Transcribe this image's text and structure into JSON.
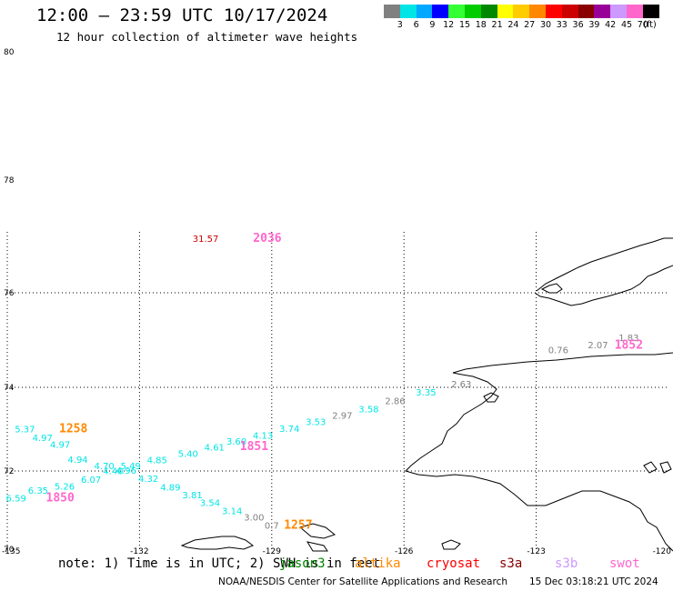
{
  "title": "12:00 – 23:59 UTC 10/17/2024",
  "subtitle": "12 hour collection of altimeter wave heights",
  "legend": {
    "unit": "(ft)",
    "bins": [
      {
        "label": "3",
        "color": "#808080"
      },
      {
        "label": "6",
        "color": "#00e5e5"
      },
      {
        "label": "9",
        "color": "#00a8ff"
      },
      {
        "label": "12",
        "color": "#0000ff"
      },
      {
        "label": "15",
        "color": "#33ff33"
      },
      {
        "label": "18",
        "color": "#00cc00"
      },
      {
        "label": "21",
        "color": "#008800"
      },
      {
        "label": "24",
        "color": "#ffff00"
      },
      {
        "label": "27",
        "color": "#ffcc00"
      },
      {
        "label": "30",
        "color": "#ff8800"
      },
      {
        "label": "33",
        "color": "#ff0000"
      },
      {
        "label": "36",
        "color": "#cc0000"
      },
      {
        "label": "39",
        "color": "#880000"
      },
      {
        "label": "42",
        "color": "#990099"
      },
      {
        "label": "45",
        "color": "#cc99ff"
      },
      {
        "label": "70",
        "color": "#ff66cc"
      },
      {
        "label": "",
        "color": "#000000"
      }
    ]
  },
  "map": {
    "lat_labels": [
      {
        "text": "80",
        "y": 80
      },
      {
        "text": "78",
        "y": 78
      },
      {
        "text": "76",
        "y": 76
      },
      {
        "text": "74",
        "y": 74
      },
      {
        "text": "72",
        "y": 72
      },
      {
        "text": "70",
        "y": 70
      }
    ],
    "lon_labels": [
      "-135",
      "-132",
      "-129",
      "-126",
      "-123",
      "-120"
    ],
    "observations": [
      {
        "text": "31.57",
        "lon": -130.5,
        "lat": 76.9,
        "color": "#cc0000"
      },
      {
        "text": "2036",
        "lon": -129.1,
        "lat": 76.9,
        "color": "#ff66cc",
        "time": true
      },
      {
        "text": "1.83",
        "lon": -120.9,
        "lat": 74.98,
        "color": "#808080"
      },
      {
        "text": "2.07",
        "lon": -121.6,
        "lat": 74.83,
        "color": "#808080"
      },
      {
        "text": "1852",
        "lon": -120.9,
        "lat": 74.82,
        "color": "#ff66cc",
        "time": true
      },
      {
        "text": "0.76",
        "lon": -122.5,
        "lat": 74.72,
        "color": "#808080"
      },
      {
        "text": "2.63",
        "lon": -124.7,
        "lat": 74.0,
        "color": "#808080"
      },
      {
        "text": "3.35",
        "lon": -125.5,
        "lat": 73.8,
        "color": "#00e5e5"
      },
      {
        "text": "2.86",
        "lon": -126.2,
        "lat": 73.6,
        "color": "#808080"
      },
      {
        "text": "3.58",
        "lon": -126.8,
        "lat": 73.4,
        "color": "#00e5e5"
      },
      {
        "text": "2.97",
        "lon": -127.4,
        "lat": 73.25,
        "color": "#808080"
      },
      {
        "text": "3.53",
        "lon": -128.0,
        "lat": 73.1,
        "color": "#00e5e5"
      },
      {
        "text": "3.74",
        "lon": -128.6,
        "lat": 72.94,
        "color": "#00e5e5"
      },
      {
        "text": "4.13",
        "lon": -129.2,
        "lat": 72.77,
        "color": "#00e5e5"
      },
      {
        "text": "3.60",
        "lon": -129.8,
        "lat": 72.63,
        "color": "#00e5e5"
      },
      {
        "text": "1851",
        "lon": -129.4,
        "lat": 72.5,
        "color": "#ff66cc",
        "time": true
      },
      {
        "text": "4.61",
        "lon": -130.3,
        "lat": 72.49,
        "color": "#00e5e5"
      },
      {
        "text": "5.40",
        "lon": -130.9,
        "lat": 72.34,
        "color": "#00e5e5"
      },
      {
        "text": "4.85",
        "lon": -131.6,
        "lat": 72.18,
        "color": "#00e5e5"
      },
      {
        "text": "5.49",
        "lon": -132.2,
        "lat": 72.04,
        "color": "#00e5e5"
      },
      {
        "text": "4.70",
        "lon": -132.8,
        "lat": 72.04,
        "color": "#00e5e5"
      },
      {
        "text": "4.96",
        "lon": -132.3,
        "lat": 71.93,
        "color": "#00e5e5"
      },
      {
        "text": "4.40",
        "lon": -132.6,
        "lat": 71.92,
        "color": "#00e5e5"
      },
      {
        "text": "4.94",
        "lon": -133.4,
        "lat": 72.2,
        "color": "#00e5e5"
      },
      {
        "text": "4.97",
        "lon": -133.8,
        "lat": 72.55,
        "color": "#00e5e5"
      },
      {
        "text": "4.97",
        "lon": -134.2,
        "lat": 72.72,
        "color": "#00e5e5"
      },
      {
        "text": "5.37",
        "lon": -134.6,
        "lat": 72.92,
        "color": "#00e5e5"
      },
      {
        "text": "1258",
        "lon": -133.5,
        "lat": 72.92,
        "color": "#ff8800",
        "time": true
      },
      {
        "text": "4.32",
        "lon": -131.8,
        "lat": 71.72,
        "color": "#00e5e5"
      },
      {
        "text": "6.07",
        "lon": -133.1,
        "lat": 71.7,
        "color": "#00e5e5"
      },
      {
        "text": "5.26",
        "lon": -133.7,
        "lat": 71.52,
        "color": "#00e5e5"
      },
      {
        "text": "4.89",
        "lon": -131.3,
        "lat": 71.5,
        "color": "#00e5e5"
      },
      {
        "text": "6.35",
        "lon": -134.3,
        "lat": 71.42,
        "color": "#00e5e5"
      },
      {
        "text": "3.81",
        "lon": -130.8,
        "lat": 71.3,
        "color": "#00e5e5"
      },
      {
        "text": "6.59",
        "lon": -134.8,
        "lat": 71.22,
        "color": "#00e5e5"
      },
      {
        "text": "1850",
        "lon": -133.8,
        "lat": 71.22,
        "color": "#ff66cc",
        "time": true
      },
      {
        "text": "3.54",
        "lon": -130.4,
        "lat": 71.1,
        "color": "#00e5e5"
      },
      {
        "text": "3.14",
        "lon": -129.9,
        "lat": 70.9,
        "color": "#00e5e5"
      },
      {
        "text": "3.00",
        "lon": -129.4,
        "lat": 70.73,
        "color": "#808080"
      },
      {
        "text": "0.7",
        "lon": -129.0,
        "lat": 70.52,
        "color": "#808080"
      },
      {
        "text": "1257",
        "lon": -128.4,
        "lat": 70.52,
        "color": "#ff8800",
        "time": true
      }
    ]
  },
  "note": {
    "prefix": "note: 1) Time is in UTC; 2) SWH is in feet",
    "satellites": [
      {
        "label": "jason3",
        "color": "#008800"
      },
      {
        "label": "altika",
        "color": "#ff8800"
      },
      {
        "label": "cryosat",
        "color": "#ff0000"
      },
      {
        "label": "s3a",
        "color": "#880000"
      },
      {
        "label": "s3b",
        "color": "#cc99ff"
      },
      {
        "label": "swot",
        "color": "#ff66cc"
      }
    ]
  },
  "footer": {
    "credit": "NOAA/NESDIS Center for Satellite Applications and Research",
    "date": "15 Dec 03:18:21 UTC 2024"
  }
}
